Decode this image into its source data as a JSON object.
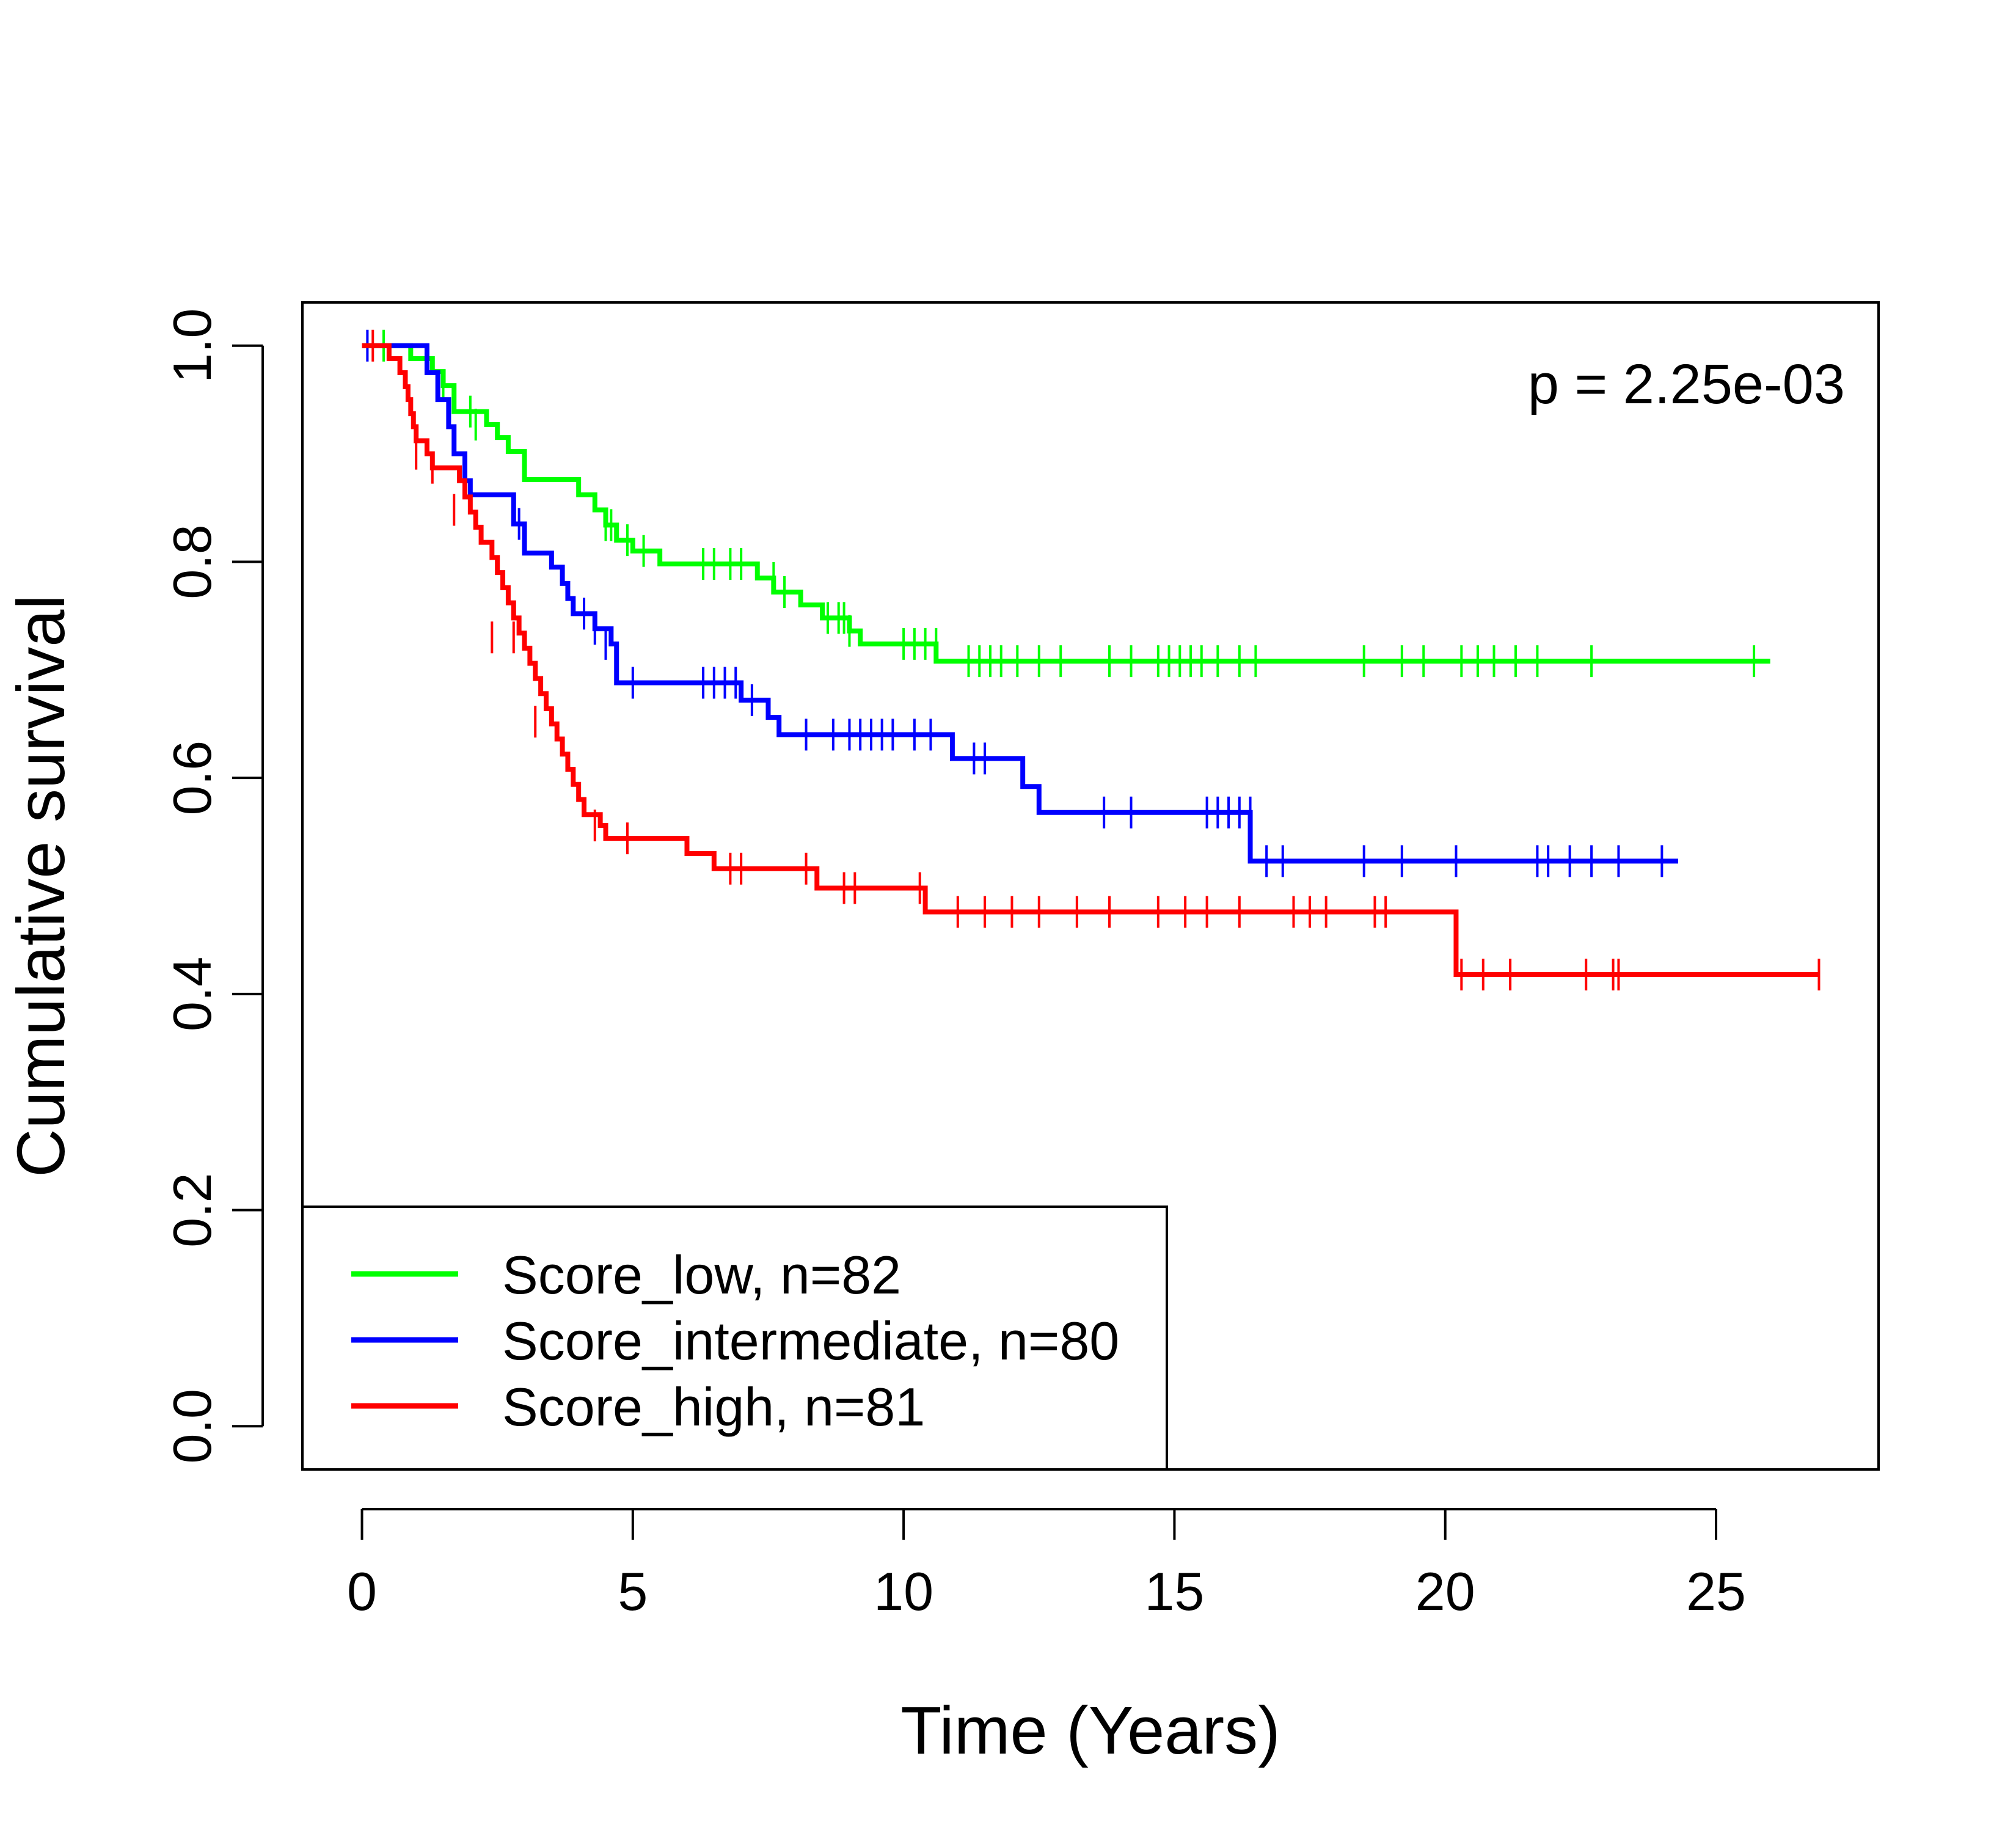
{
  "chart_data": {
    "type": "line",
    "xlabel": "Time (Years)",
    "ylabel": "Cumulative survival",
    "annotation": "p = 2.25e-03",
    "xlim": [
      -1.1,
      28
    ],
    "ylim": [
      -0.04,
      1.04
    ],
    "x_ticks": [
      0,
      5,
      10,
      15,
      20,
      25
    ],
    "x_tick_labels": [
      "0",
      "5",
      "10",
      "15",
      "20",
      "25"
    ],
    "y_ticks": [
      0.0,
      0.2,
      0.4,
      0.6,
      0.8,
      1.0
    ],
    "y_tick_labels": [
      "0.0",
      "0.2",
      "0.4",
      "0.6",
      "0.8",
      "1.0"
    ],
    "legend_placement": "bottom-left",
    "series": [
      {
        "name": "Score_low, n=82",
        "color": "#00FF00",
        "steps": [
          [
            0,
            1.0
          ],
          [
            0.9,
            0.988
          ],
          [
            1.3,
            0.976
          ],
          [
            1.5,
            0.963
          ],
          [
            1.7,
            0.939
          ],
          [
            2.3,
            0.927
          ],
          [
            2.5,
            0.915
          ],
          [
            2.7,
            0.902
          ],
          [
            3.0,
            0.876
          ],
          [
            4.0,
            0.862
          ],
          [
            4.3,
            0.848
          ],
          [
            4.5,
            0.834
          ],
          [
            4.7,
            0.82
          ],
          [
            5.0,
            0.81
          ],
          [
            5.5,
            0.798
          ],
          [
            7.3,
            0.785
          ],
          [
            7.6,
            0.772
          ],
          [
            8.1,
            0.76
          ],
          [
            8.5,
            0.748
          ],
          [
            9.0,
            0.736
          ],
          [
            9.2,
            0.724
          ],
          [
            10.6,
            0.708
          ],
          [
            26.0,
            0.708
          ]
        ],
        "censors": [
          [
            0.4,
            1.0
          ],
          [
            1.5,
            0.963
          ],
          [
            2.0,
            0.939
          ],
          [
            2.1,
            0.927
          ],
          [
            4.5,
            0.834
          ],
          [
            4.6,
            0.834
          ],
          [
            4.9,
            0.82
          ],
          [
            5.2,
            0.81
          ],
          [
            6.3,
            0.798
          ],
          [
            6.5,
            0.798
          ],
          [
            6.8,
            0.798
          ],
          [
            7.0,
            0.798
          ],
          [
            7.6,
            0.785
          ],
          [
            7.8,
            0.772
          ],
          [
            8.6,
            0.748
          ],
          [
            8.8,
            0.748
          ],
          [
            8.9,
            0.748
          ],
          [
            9.0,
            0.736
          ],
          [
            10.0,
            0.724
          ],
          [
            10.2,
            0.724
          ],
          [
            10.4,
            0.724
          ],
          [
            10.6,
            0.724
          ],
          [
            11.2,
            0.708
          ],
          [
            11.4,
            0.708
          ],
          [
            11.6,
            0.708
          ],
          [
            11.8,
            0.708
          ],
          [
            12.1,
            0.708
          ],
          [
            12.5,
            0.708
          ],
          [
            12.9,
            0.708
          ],
          [
            13.8,
            0.708
          ],
          [
            14.2,
            0.708
          ],
          [
            14.7,
            0.708
          ],
          [
            14.9,
            0.708
          ],
          [
            15.1,
            0.708
          ],
          [
            15.3,
            0.708
          ],
          [
            15.5,
            0.708
          ],
          [
            15.8,
            0.708
          ],
          [
            16.2,
            0.708
          ],
          [
            16.5,
            0.708
          ],
          [
            18.5,
            0.708
          ],
          [
            19.2,
            0.708
          ],
          [
            19.6,
            0.708
          ],
          [
            20.3,
            0.708
          ],
          [
            20.6,
            0.708
          ],
          [
            20.9,
            0.708
          ],
          [
            21.3,
            0.708
          ],
          [
            21.7,
            0.708
          ],
          [
            22.7,
            0.708
          ],
          [
            25.7,
            0.708
          ]
        ]
      },
      {
        "name": "Score_intermediate, n=80",
        "color": "#0000FF",
        "steps": [
          [
            0,
            1.0
          ],
          [
            1.2,
            0.975
          ],
          [
            1.4,
            0.95
          ],
          [
            1.6,
            0.925
          ],
          [
            1.7,
            0.9
          ],
          [
            1.9,
            0.875
          ],
          [
            2.0,
            0.862
          ],
          [
            2.8,
            0.835
          ],
          [
            3.0,
            0.808
          ],
          [
            3.5,
            0.795
          ],
          [
            3.7,
            0.78
          ],
          [
            3.8,
            0.766
          ],
          [
            3.9,
            0.752
          ],
          [
            4.3,
            0.738
          ],
          [
            4.6,
            0.724
          ],
          [
            4.7,
            0.688
          ],
          [
            7.0,
            0.672
          ],
          [
            7.5,
            0.656
          ],
          [
            7.7,
            0.64
          ],
          [
            10.9,
            0.618
          ],
          [
            11.8,
            0.618
          ],
          [
            12.2,
            0.592
          ],
          [
            12.5,
            0.568
          ],
          [
            16.4,
            0.523
          ],
          [
            24.3,
            0.523
          ]
        ],
        "censors": [
          [
            0.1,
            1.0
          ],
          [
            1.9,
            0.875
          ],
          [
            2.9,
            0.835
          ],
          [
            4.1,
            0.752
          ],
          [
            4.3,
            0.738
          ],
          [
            4.5,
            0.724
          ],
          [
            5.0,
            0.688
          ],
          [
            6.3,
            0.688
          ],
          [
            6.5,
            0.688
          ],
          [
            6.7,
            0.688
          ],
          [
            6.9,
            0.688
          ],
          [
            7.2,
            0.672
          ],
          [
            8.2,
            0.64
          ],
          [
            8.7,
            0.64
          ],
          [
            9.0,
            0.64
          ],
          [
            9.2,
            0.64
          ],
          [
            9.4,
            0.64
          ],
          [
            9.6,
            0.64
          ],
          [
            9.8,
            0.64
          ],
          [
            10.2,
            0.64
          ],
          [
            10.5,
            0.64
          ],
          [
            11.3,
            0.618
          ],
          [
            11.5,
            0.618
          ],
          [
            13.7,
            0.568
          ],
          [
            14.2,
            0.568
          ],
          [
            15.6,
            0.568
          ],
          [
            15.8,
            0.568
          ],
          [
            16.0,
            0.568
          ],
          [
            16.2,
            0.568
          ],
          [
            16.4,
            0.568
          ],
          [
            16.7,
            0.523
          ],
          [
            17.0,
            0.523
          ],
          [
            18.5,
            0.523
          ],
          [
            19.2,
            0.523
          ],
          [
            20.2,
            0.523
          ],
          [
            21.7,
            0.523
          ],
          [
            21.9,
            0.523
          ],
          [
            22.3,
            0.523
          ],
          [
            22.7,
            0.523
          ],
          [
            23.2,
            0.523
          ],
          [
            24.0,
            0.523
          ]
        ]
      },
      {
        "name": "Score_high, n=81",
        "color": "#FF0000",
        "steps": [
          [
            0,
            1.0
          ],
          [
            0.5,
            0.988
          ],
          [
            0.7,
            0.975
          ],
          [
            0.8,
            0.962
          ],
          [
            0.85,
            0.95
          ],
          [
            0.9,
            0.937
          ],
          [
            0.95,
            0.925
          ],
          [
            1.0,
            0.912
          ],
          [
            1.2,
            0.9
          ],
          [
            1.3,
            0.887
          ],
          [
            1.8,
            0.875
          ],
          [
            1.9,
            0.86
          ],
          [
            2.0,
            0.846
          ],
          [
            2.1,
            0.832
          ],
          [
            2.2,
            0.818
          ],
          [
            2.4,
            0.804
          ],
          [
            2.5,
            0.79
          ],
          [
            2.6,
            0.776
          ],
          [
            2.7,
            0.762
          ],
          [
            2.8,
            0.748
          ],
          [
            2.9,
            0.734
          ],
          [
            3.0,
            0.72
          ],
          [
            3.1,
            0.706
          ],
          [
            3.2,
            0.692
          ],
          [
            3.3,
            0.678
          ],
          [
            3.4,
            0.664
          ],
          [
            3.5,
            0.65
          ],
          [
            3.6,
            0.636
          ],
          [
            3.7,
            0.622
          ],
          [
            3.8,
            0.608
          ],
          [
            3.9,
            0.594
          ],
          [
            4.0,
            0.58
          ],
          [
            4.1,
            0.566
          ],
          [
            4.4,
            0.556
          ],
          [
            4.5,
            0.544
          ],
          [
            6.0,
            0.53
          ],
          [
            6.5,
            0.516
          ],
          [
            8.4,
            0.498
          ],
          [
            10.4,
            0.476
          ],
          [
            20.2,
            0.418
          ],
          [
            26.9,
            0.418
          ]
        ],
        "censors": [
          [
            0.2,
            1.0
          ],
          [
            1.0,
            0.9
          ],
          [
            1.3,
            0.887
          ],
          [
            1.7,
            0.848
          ],
          [
            2.4,
            0.73
          ],
          [
            2.8,
            0.73
          ],
          [
            3.2,
            0.652
          ],
          [
            4.3,
            0.556
          ],
          [
            4.9,
            0.544
          ],
          [
            6.8,
            0.516
          ],
          [
            7.0,
            0.516
          ],
          [
            8.2,
            0.516
          ],
          [
            8.9,
            0.498
          ],
          [
            9.1,
            0.498
          ],
          [
            10.3,
            0.498
          ],
          [
            11.0,
            0.476
          ],
          [
            11.5,
            0.476
          ],
          [
            12.0,
            0.476
          ],
          [
            12.5,
            0.476
          ],
          [
            13.2,
            0.476
          ],
          [
            13.8,
            0.476
          ],
          [
            14.7,
            0.476
          ],
          [
            15.2,
            0.476
          ],
          [
            15.6,
            0.476
          ],
          [
            16.2,
            0.476
          ],
          [
            17.2,
            0.476
          ],
          [
            17.5,
            0.476
          ],
          [
            17.8,
            0.476
          ],
          [
            18.7,
            0.476
          ],
          [
            18.9,
            0.476
          ],
          [
            20.3,
            0.418
          ],
          [
            20.7,
            0.418
          ],
          [
            21.2,
            0.418
          ],
          [
            22.6,
            0.418
          ],
          [
            23.1,
            0.418
          ],
          [
            23.2,
            0.418
          ],
          [
            26.9,
            0.418
          ]
        ]
      }
    ]
  }
}
